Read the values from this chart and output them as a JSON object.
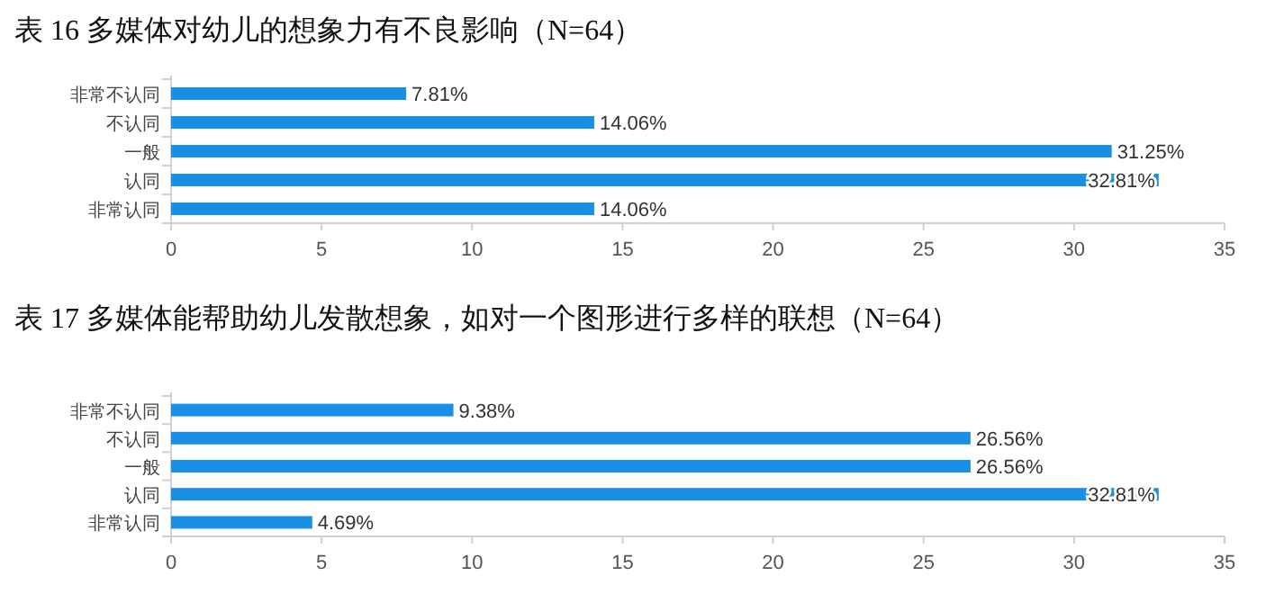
{
  "chart_data": [
    {
      "type": "bar",
      "orientation": "horizontal",
      "title": "表 16 多媒体对幼儿的想象力有不良影响（N=64）",
      "categories": [
        "非常不认同",
        "不认同",
        "一般",
        "认同",
        "非常认同"
      ],
      "values": [
        7.81,
        14.06,
        31.25,
        32.81,
        14.06
      ],
      "value_labels": [
        "7.81%",
        "14.06%",
        "31.25%",
        "32.81%",
        "14.06%"
      ],
      "color": "#1a8fe6",
      "xlim": [
        0,
        35
      ],
      "xticks": [
        0,
        5,
        10,
        15,
        20,
        25,
        30,
        35
      ]
    },
    {
      "type": "bar",
      "orientation": "horizontal",
      "title": "表 17 多媒体能帮助幼儿发散想象，如对一个图形进行多样的联想（N=64）",
      "categories": [
        "非常不认同",
        "不认同",
        "一般",
        "认同",
        "非常认同"
      ],
      "values": [
        9.38,
        26.56,
        26.56,
        32.81,
        4.69
      ],
      "value_labels": [
        "9.38%",
        "26.56%",
        "26.56%",
        "32.81%",
        "4.69%"
      ],
      "color": "#1a8fe6",
      "xlim": [
        0,
        35
      ],
      "xticks": [
        0,
        5,
        10,
        15,
        20,
        25,
        30,
        35
      ]
    }
  ]
}
